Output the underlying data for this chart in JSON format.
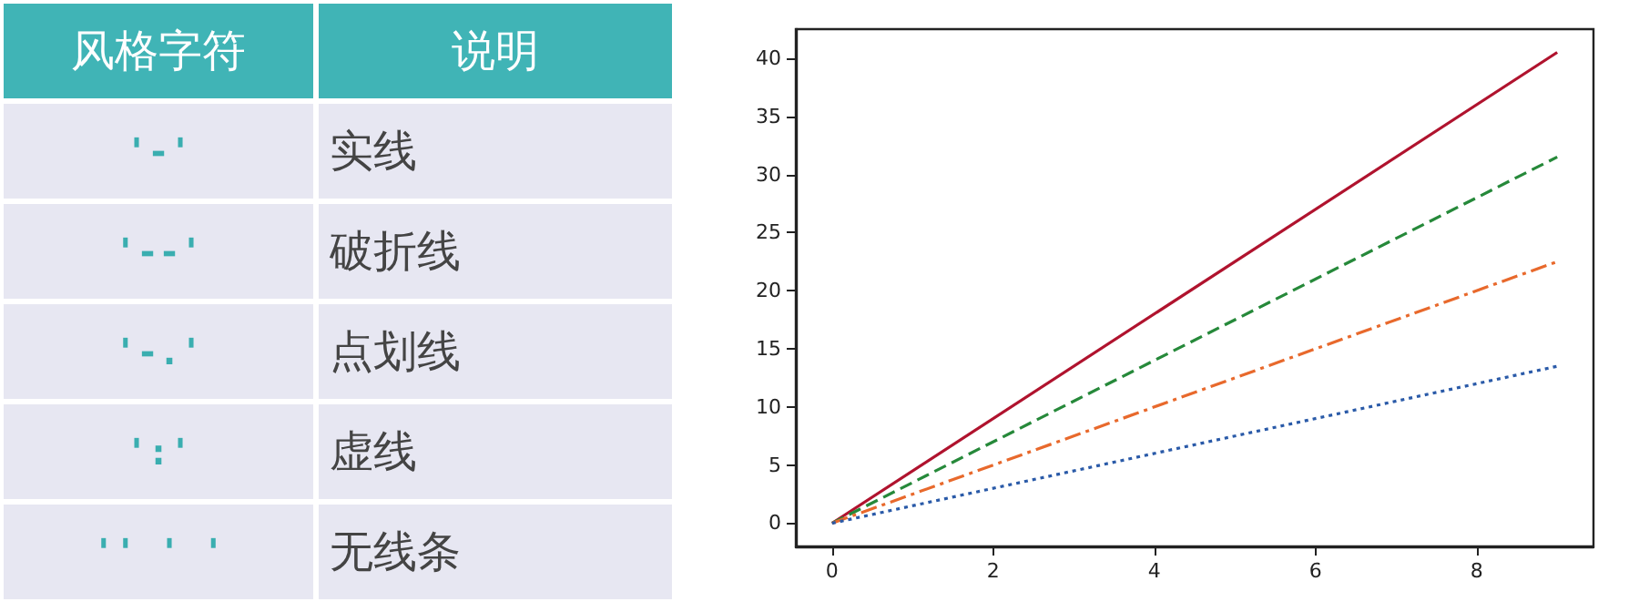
{
  "chart_data": [
    {
      "type": "other",
      "annotations": [
        "风格字符",
        "说明",
        "'-'",
        "实线",
        "'--'",
        "破折线",
        "'-.'",
        "点划线",
        "':'",
        "虚线",
        "'' ' '",
        "无线条"
      ]
    },
    {
      "type": "line",
      "x": [
        0,
        9
      ],
      "xlim": [
        -0.45,
        9.45
      ],
      "xticks": [
        0,
        2,
        4,
        6,
        8
      ],
      "ylim": [
        -2,
        42.5
      ],
      "yticks": [
        0,
        5,
        10,
        15,
        20,
        25,
        30,
        35,
        40
      ],
      "grid": false,
      "marker": "none",
      "series": [
        {
          "color": "#b0132e",
          "line_style": "solid",
          "values": [
            0,
            40.5
          ]
        },
        {
          "color": "#26893a",
          "line_style": "dashed",
          "values": [
            0,
            31.5
          ]
        },
        {
          "color": "#e8692c",
          "line_style": "dashdot",
          "values": [
            0,
            22.5
          ]
        },
        {
          "color": "#2a5aa8",
          "line_style": "dotted",
          "values": [
            0,
            13.5
          ]
        }
      ]
    }
  ]
}
